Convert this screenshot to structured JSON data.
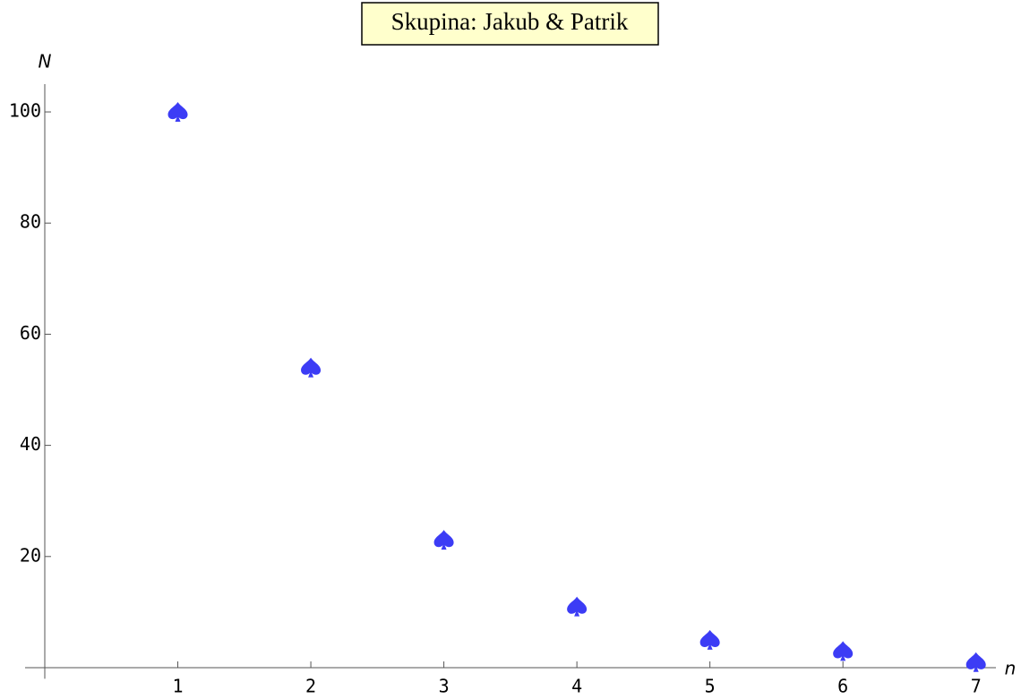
{
  "chart_data": {
    "type": "scatter",
    "title": "Skupina: Jakub & Patrik",
    "x_label": "n",
    "y_label": "N",
    "x": [
      1,
      2,
      3,
      4,
      5,
      6,
      7
    ],
    "series": [
      {
        "color": "#3c3cf5",
        "marker": "spade",
        "values": [
          100,
          54,
          23,
          11,
          5,
          3,
          1
        ]
      }
    ],
    "xlim": [
      0,
      7.15
    ],
    "ylim": [
      -2,
      105
    ],
    "xticks": [
      1,
      2,
      3,
      4,
      5,
      6,
      7
    ],
    "yticks": [
      20,
      40,
      60,
      80,
      100
    ]
  }
}
